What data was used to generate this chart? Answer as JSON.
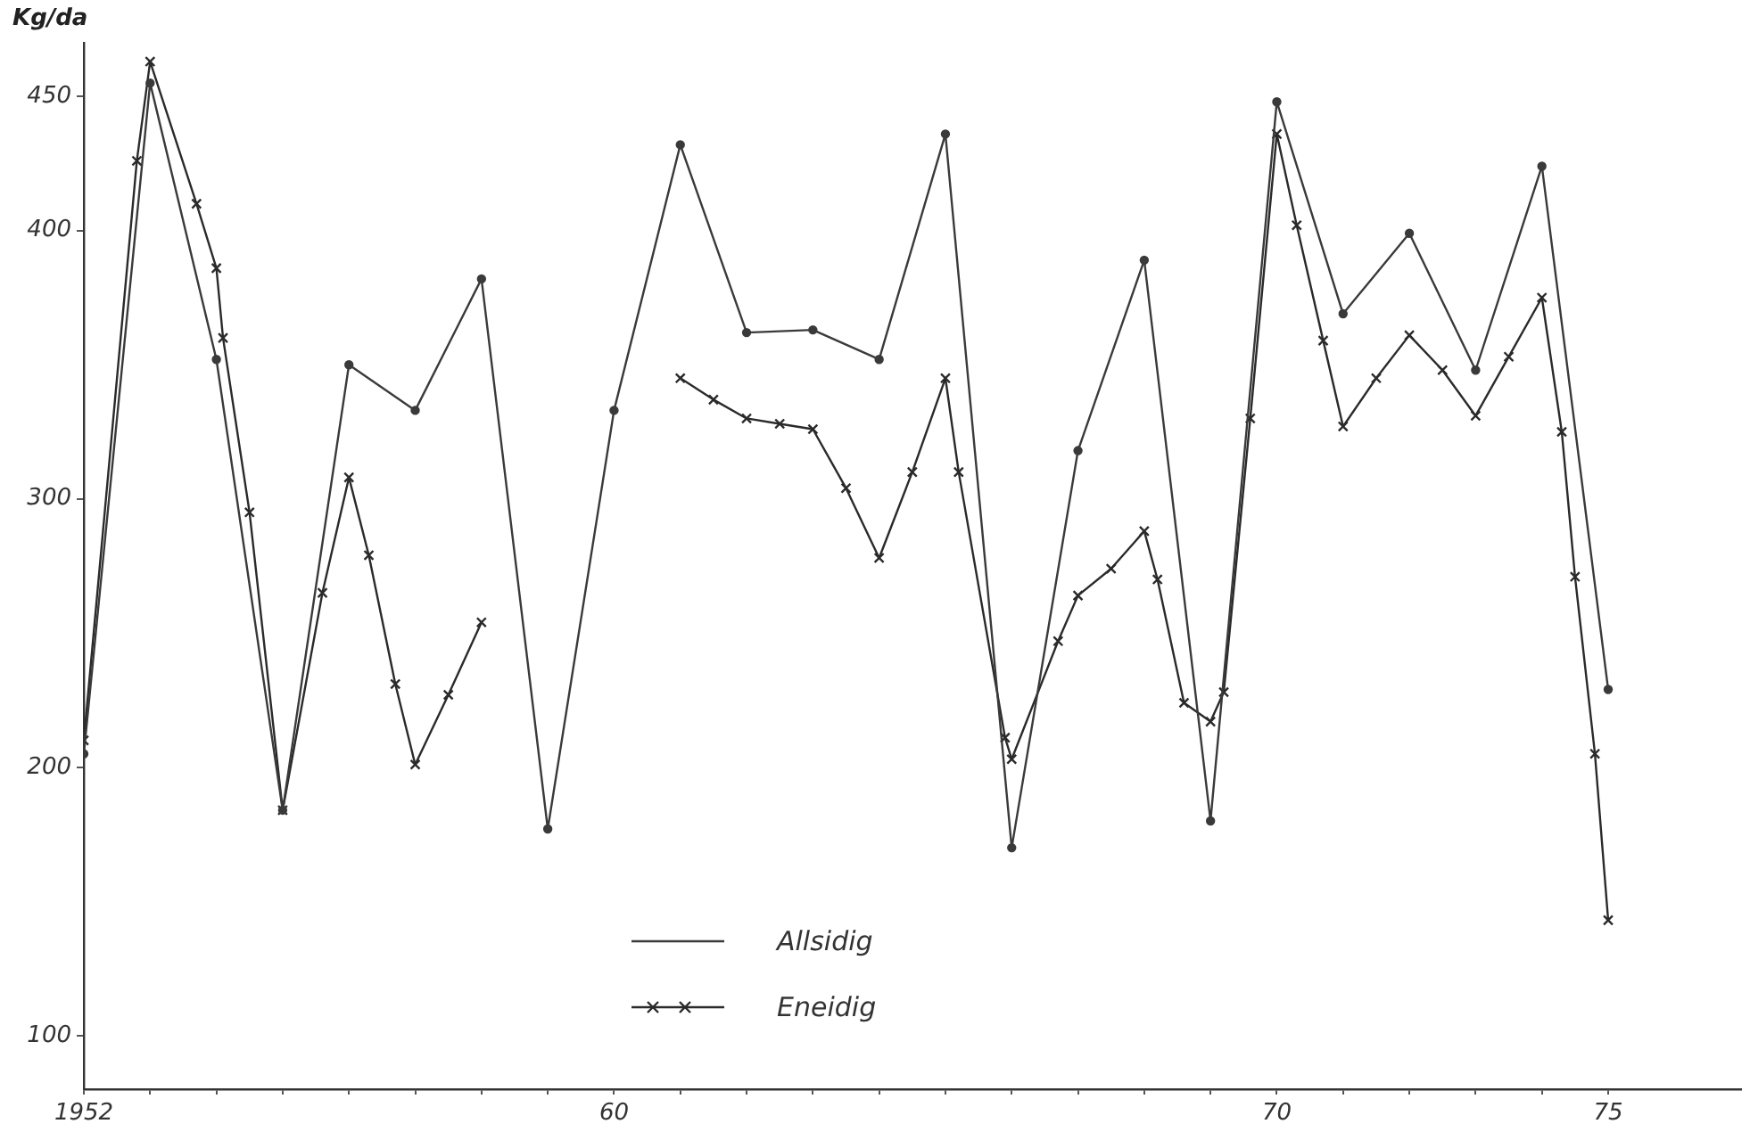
{
  "chart_data": {
    "type": "line",
    "ylabel": "Kg/da",
    "legend": "bottom",
    "grid": false,
    "line_style": "solid",
    "xlim": [
      1952,
      1977
    ],
    "ylim": [
      80,
      470
    ],
    "xticks": [
      {
        "value": 1952,
        "label": "1952"
      },
      {
        "value": 1953,
        "label": null
      },
      {
        "value": 1954,
        "label": null
      },
      {
        "value": 1955,
        "label": null
      },
      {
        "value": 1956,
        "label": null
      },
      {
        "value": 1957,
        "label": null
      },
      {
        "value": 1958,
        "label": null
      },
      {
        "value": 1959,
        "label": null
      },
      {
        "value": 1960,
        "label": "60"
      },
      {
        "value": 1961,
        "label": null
      },
      {
        "value": 1962,
        "label": null
      },
      {
        "value": 1963,
        "label": null
      },
      {
        "value": 1964,
        "label": null
      },
      {
        "value": 1965,
        "label": null
      },
      {
        "value": 1966,
        "label": null
      },
      {
        "value": 1967,
        "label": null
      },
      {
        "value": 1968,
        "label": null
      },
      {
        "value": 1969,
        "label": null
      },
      {
        "value": 1970,
        "label": "70"
      },
      {
        "value": 1971,
        "label": null
      },
      {
        "value": 1972,
        "label": null
      },
      {
        "value": 1973,
        "label": null
      },
      {
        "value": 1974,
        "label": null
      },
      {
        "value": 1975,
        "label": "75"
      }
    ],
    "yticks": [
      100,
      200,
      300,
      400,
      450
    ],
    "series": [
      {
        "name": "Allsidig",
        "color": "#3a3a3a",
        "marker": "circle",
        "x": [
          1952,
          1953,
          1954,
          1955,
          1956,
          1957,
          1958,
          1959,
          1960,
          1961,
          1962,
          1963,
          1964,
          1965,
          1966,
          1967,
          1968,
          1969,
          1970,
          1971,
          1972,
          1973,
          1974,
          1975
        ],
        "values": [
          205,
          455,
          352,
          184,
          350,
          333,
          382,
          177,
          333,
          432,
          362,
          363,
          352,
          436,
          170,
          318,
          389,
          180,
          448,
          369,
          399,
          348,
          424,
          229
        ]
      },
      {
        "name": "Eneidig",
        "color": "#2a2a2a",
        "marker": "cross",
        "x": [
          1952,
          1952.8,
          1953,
          1953.7,
          1954,
          1954.1,
          1954.5,
          1955,
          1955.6,
          1956,
          1956.3,
          1956.7,
          1957,
          1957.5,
          1958,
          1959.5,
          1961,
          1961.5,
          1962,
          1962.5,
          1963,
          1963.5,
          1964,
          1964.5,
          1965,
          1965.2,
          1965.9,
          1966,
          1966.7,
          1967,
          1967.5,
          1968,
          1968.2,
          1968.6,
          1969,
          1969.2,
          1969.6,
          1970,
          1970.3,
          1970.7,
          1971,
          1971.5,
          1972,
          1972.5,
          1973,
          1973.5,
          1974,
          1974.3,
          1974.5,
          1974.8,
          1975
        ],
        "values": [
          210,
          426,
          463,
          410,
          386,
          360,
          295,
          184,
          265,
          308,
          279,
          231,
          201,
          227,
          254,
          null,
          345,
          337,
          330,
          328,
          326,
          304,
          278,
          310,
          345,
          310,
          211,
          203,
          247,
          264,
          274,
          288,
          270,
          224,
          217,
          228,
          330,
          436,
          402,
          359,
          327,
          345,
          361,
          348,
          331,
          353,
          375,
          325,
          271,
          205,
          143
        ]
      }
    ]
  }
}
